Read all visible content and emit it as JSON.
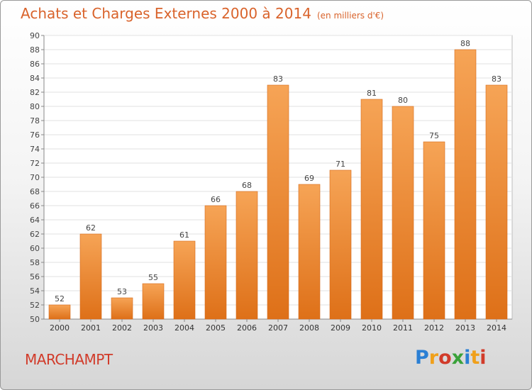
{
  "title": "Achats et Charges Externes 2000 à 2014",
  "unit": "(en milliers d'€)",
  "commune": "MARCHAMPT",
  "logo": {
    "letters": [
      "P",
      "r",
      "o",
      "x",
      "i",
      "t",
      "i"
    ],
    "colors": [
      "#2a7fd4",
      "#f0a01a",
      "#d13b2a",
      "#3aa23a",
      "#2a7fd4",
      "#f0a01a",
      "#d13b2a"
    ]
  },
  "chart_data": {
    "type": "bar",
    "title": "Achats et Charges Externes 2000 à 2014",
    "categories": [
      "2000",
      "2001",
      "2002",
      "2003",
      "2004",
      "2005",
      "2006",
      "2007",
      "2008",
      "2009",
      "2010",
      "2011",
      "2012",
      "2013",
      "2014"
    ],
    "values": [
      52,
      62,
      53,
      55,
      61,
      66,
      68,
      83,
      69,
      71,
      81,
      80,
      75,
      88,
      83
    ],
    "ylim": [
      50,
      90
    ],
    "ytick_step": 2,
    "grid": true,
    "bar_color": "#f0892e"
  }
}
